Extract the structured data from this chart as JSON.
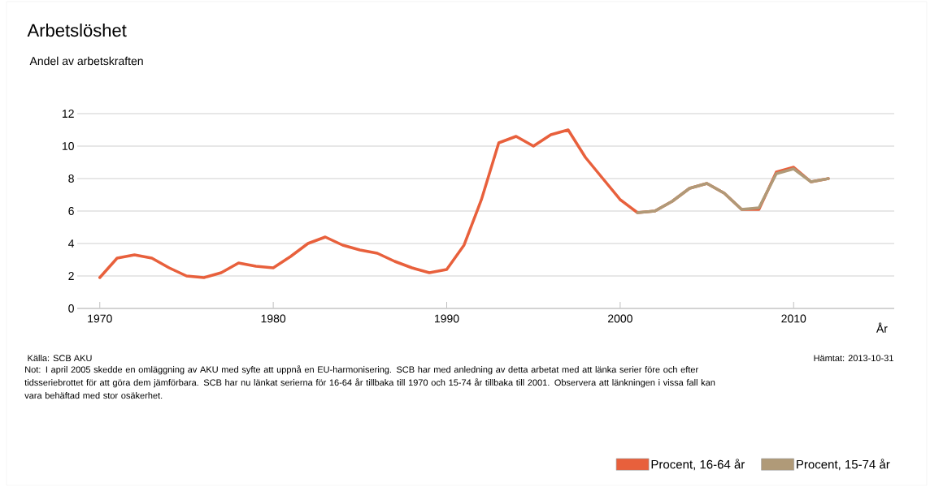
{
  "chart_data": {
    "type": "line",
    "title": "Arbetslöshet",
    "subtitle": "Andel av arbetskraften",
    "xlabel": "År",
    "xlim": [
      1968.7,
      2015.8
    ],
    "xticks": [
      1970,
      1980,
      1990,
      2000,
      2010
    ],
    "ylim": [
      0,
      12
    ],
    "yticks": [
      0,
      2,
      4,
      6,
      8,
      10,
      12
    ],
    "grid": "y",
    "legend": "bottom right",
    "series": [
      {
        "name": "Procent, 16-64 år",
        "color": "#e8603c",
        "x": [
          1970,
          1971,
          1972,
          1973,
          1974,
          1975,
          1976,
          1977,
          1978,
          1979,
          1980,
          1981,
          1982,
          1983,
          1984,
          1985,
          1986,
          1987,
          1988,
          1989,
          1990,
          1991,
          1992,
          1993,
          1994,
          1995,
          1996,
          1997,
          1998,
          1999,
          2000,
          2001,
          2002,
          2003,
          2004,
          2005,
          2006,
          2007,
          2008,
          2009,
          2010,
          2011,
          2012
        ],
        "values": [
          1.9,
          3.1,
          3.3,
          3.1,
          2.5,
          2.0,
          1.9,
          2.2,
          2.8,
          2.6,
          2.5,
          3.2,
          4.0,
          4.4,
          3.9,
          3.6,
          3.4,
          2.9,
          2.5,
          2.2,
          2.4,
          3.9,
          6.7,
          10.2,
          10.6,
          10.0,
          10.7,
          11.0,
          9.3,
          8.0,
          6.7,
          5.9,
          6.0,
          6.6,
          7.4,
          7.7,
          7.1,
          6.1,
          6.1,
          8.4,
          8.7,
          7.8,
          8.0
        ]
      },
      {
        "name": "Procent, 15-74 år",
        "color": "#b09a78",
        "x": [
          2001,
          2002,
          2003,
          2004,
          2005,
          2006,
          2007,
          2008,
          2009,
          2010,
          2011,
          2012
        ],
        "values": [
          5.9,
          6.0,
          6.6,
          7.4,
          7.7,
          7.1,
          6.1,
          6.2,
          8.3,
          8.6,
          7.8,
          8.0
        ]
      }
    ],
    "annotations": [
      "Källa: SCB AKU",
      "Hämtat: 2013-10-31",
      "Not: I april 2005 skedde en omläggning av AKU med syfte att uppnå en EU-harmonisering. SCB har med anledning av detta arbetat med att länka serier före och efter tidsseriebrottet för att göra dem jämförbara. SCB har nu länkat serierna för 16-64 år tillbaka till 1970 och 15-74 år tillbaka till 2001. Observera att länkningen i vissa fall kan vara behäftad med stor osäkerhet."
    ]
  }
}
